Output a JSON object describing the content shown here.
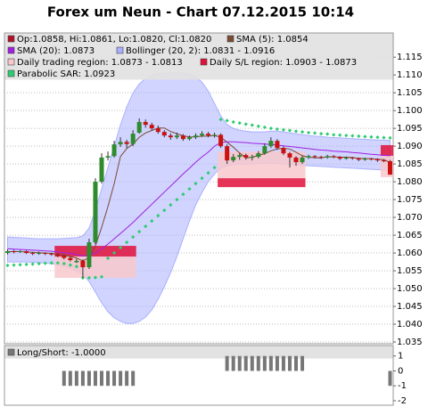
{
  "chart_data": [
    {
      "type": "candlestick",
      "title": "Forex um Neun - Chart 07.12.2015 10:14",
      "ohlc_name": "Op:1.0858, Hi:1.0861, Lo:1.0820, Cl:1.0820",
      "ohlc_color": "#b0102a",
      "up_color": "#2e8b2e",
      "down_color": "#cc1111",
      "ohlc": [
        [
          1.06,
          1.061,
          1.0596,
          1.0605
        ],
        [
          1.0605,
          1.0609,
          1.0599,
          1.0603
        ],
        [
          1.0603,
          1.0608,
          1.06,
          1.0605
        ],
        [
          1.0605,
          1.0607,
          1.0597,
          1.06
        ],
        [
          1.06,
          1.0603,
          1.0594,
          1.0598
        ],
        [
          1.0598,
          1.0604,
          1.0595,
          1.06
        ],
        [
          1.06,
          1.0602,
          1.0594,
          1.0598
        ],
        [
          1.0598,
          1.0601,
          1.0592,
          1.0596
        ],
        [
          1.0596,
          1.0599,
          1.0588,
          1.0592
        ],
        [
          1.0592,
          1.0595,
          1.0582,
          1.0586
        ],
        [
          1.0586,
          1.059,
          1.0576,
          1.058
        ],
        [
          1.0574,
          1.0584,
          1.0572,
          1.0578
        ],
        [
          1.0578,
          1.0582,
          1.053,
          1.056
        ],
        [
          1.056,
          1.064,
          1.0555,
          1.063
        ],
        [
          1.063,
          1.081,
          1.0625,
          1.08
        ],
        [
          1.08,
          1.088,
          1.0795,
          1.0868
        ],
        [
          1.0868,
          1.0885,
          1.086,
          1.0872
        ],
        [
          1.0872,
          1.0915,
          1.0868,
          1.0905
        ],
        [
          1.0905,
          1.0925,
          1.0898,
          1.0912
        ],
        [
          1.0912,
          1.0918,
          1.0895,
          1.0906
        ],
        [
          1.0906,
          1.0945,
          1.09,
          1.0935
        ],
        [
          1.0938,
          1.0978,
          1.0935,
          1.0968
        ],
        [
          1.0968,
          1.0975,
          1.0952,
          1.096
        ],
        [
          1.096,
          1.0966,
          1.0944,
          1.095
        ],
        [
          1.095,
          1.0958,
          1.0935,
          1.094
        ],
        [
          1.094,
          1.0945,
          1.0925,
          1.093
        ],
        [
          1.093,
          1.0936,
          1.0918,
          1.0925
        ],
        [
          1.0925,
          1.0938,
          1.092,
          1.093
        ],
        [
          1.093,
          1.0934,
          1.0915,
          1.092
        ],
        [
          1.092,
          1.093,
          1.0916,
          1.0925
        ],
        [
          1.0925,
          1.0936,
          1.092,
          1.093
        ],
        [
          1.093,
          1.0942,
          1.0926,
          1.0935
        ],
        [
          1.0935,
          1.094,
          1.0925,
          1.093
        ],
        [
          1.093,
          1.0938,
          1.0924,
          1.0932
        ],
        [
          1.0932,
          1.0936,
          1.0895,
          1.09
        ],
        [
          1.09,
          1.0905,
          1.085,
          1.086
        ],
        [
          1.086,
          1.0878,
          1.0855,
          1.087
        ],
        [
          1.087,
          1.088,
          1.0862,
          1.0875
        ],
        [
          1.0875,
          1.0879,
          1.0862,
          1.0868
        ],
        [
          1.0868,
          1.0876,
          1.086,
          1.087
        ],
        [
          1.087,
          1.0886,
          1.0866,
          1.088
        ],
        [
          1.088,
          1.0908,
          1.0876,
          1.09
        ],
        [
          1.09,
          1.0925,
          1.0895,
          1.0915
        ],
        [
          1.0915,
          1.092,
          1.089,
          1.0895
        ],
        [
          1.0895,
          1.09,
          1.0875,
          1.088
        ],
        [
          1.088,
          1.0884,
          1.084,
          1.0868
        ],
        [
          1.0868,
          1.0872,
          1.0845,
          1.0855
        ],
        [
          1.0855,
          1.0874,
          1.085,
          1.0868
        ],
        [
          1.0868,
          1.0876,
          1.0864,
          1.0872
        ],
        [
          1.0872,
          1.0875,
          1.0866,
          1.087
        ],
        [
          1.087,
          1.0873,
          1.0864,
          1.0868
        ],
        [
          1.0868,
          1.0876,
          1.0865,
          1.0872
        ],
        [
          1.0872,
          1.0875,
          1.0866,
          1.087
        ],
        [
          1.087,
          1.0872,
          1.0861,
          1.0865
        ],
        [
          1.0865,
          1.0871,
          1.0862,
          1.0868
        ],
        [
          1.0868,
          1.087,
          1.0862,
          1.0866
        ],
        [
          1.0866,
          1.0868,
          1.0858,
          1.0862
        ],
        [
          1.0862,
          1.0868,
          1.0859,
          1.0865
        ],
        [
          1.0865,
          1.0867,
          1.086,
          1.0864
        ],
        [
          1.0864,
          1.0866,
          1.0856,
          1.086
        ],
        [
          1.086,
          1.0863,
          1.0855,
          1.0858
        ],
        [
          1.0858,
          1.0861,
          1.082,
          1.082
        ]
      ],
      "series": [
        {
          "name": "SMA (5): 1.0854",
          "color": "#7a4a32",
          "style": "line",
          "values": [
            1.0604,
            1.0604,
            1.0604,
            1.0603,
            1.0602,
            1.0601,
            1.06,
            1.0599,
            1.0597,
            1.0594,
            1.059,
            1.0586,
            1.0578,
            1.0587,
            1.062,
            1.0672,
            1.073,
            1.0795,
            1.0871,
            1.0893,
            1.0906,
            1.0925,
            1.0937,
            1.0944,
            1.0951,
            1.0951,
            1.0941,
            1.0935,
            1.0929,
            1.0926,
            1.0926,
            1.0928,
            1.0928,
            1.093,
            1.0925,
            1.0911,
            1.0897,
            1.0881,
            1.0867,
            1.0869,
            1.0874,
            1.0879,
            1.0887,
            1.0892,
            1.0894,
            1.0892,
            1.0883,
            1.0873,
            1.0869,
            1.0867,
            1.0867,
            1.087,
            1.087,
            1.0869,
            1.0869,
            1.0868,
            1.0866,
            1.0865,
            1.0865,
            1.0863,
            1.0862,
            1.0854
          ]
        },
        {
          "name": "SMA (20): 1.0873",
          "color": "#a020e0",
          "style": "line",
          "values": [
            1.0612,
            1.0611,
            1.061,
            1.0609,
            1.0608,
            1.0607,
            1.0606,
            1.0605,
            1.0603,
            1.0601,
            1.0599,
            1.0596,
            1.0592,
            1.0592,
            1.06,
            1.0612,
            1.0625,
            1.064,
            1.0655,
            1.067,
            1.0686,
            1.0703,
            1.072,
            1.0737,
            1.0754,
            1.0771,
            1.0788,
            1.0805,
            1.0822,
            1.0838,
            1.0855,
            1.087,
            1.0883,
            1.09,
            1.091,
            1.0912,
            1.0912,
            1.0911,
            1.091,
            1.0908,
            1.0907,
            1.0906,
            1.0905,
            1.0903,
            1.0901,
            1.0899,
            1.0897,
            1.0895,
            1.0893,
            1.0891,
            1.0889,
            1.0888,
            1.0886,
            1.0885,
            1.0884,
            1.0882,
            1.0881,
            1.0879,
            1.0877,
            1.0876,
            1.0874,
            1.0873
          ]
        },
        {
          "name": "Parabolic SAR: 1.0923",
          "color": "#2ecc71",
          "style": "dots",
          "values": [
            1.0565,
            1.0566,
            1.0567,
            1.0568,
            1.0569,
            1.057,
            1.0571,
            1.0572,
            1.0572,
            1.057,
            1.0566,
            1.0562,
            1.053,
            1.053,
            1.0531,
            1.0533,
            1.0585,
            1.06,
            1.0615,
            1.063,
            1.0645,
            1.066,
            1.0675,
            1.069,
            1.0705,
            1.072,
            1.0735,
            1.075,
            1.0765,
            1.078,
            1.0795,
            1.081,
            1.0825,
            1.084,
            1.0975,
            1.0972,
            1.0968,
            1.0965,
            1.0962,
            1.0959,
            1.0956,
            1.0953,
            1.095,
            1.0948,
            1.0946,
            1.0944,
            1.0942,
            1.094,
            1.0938,
            1.0937,
            1.0935,
            1.0934,
            1.0932,
            1.0931,
            1.093,
            1.0929,
            1.0928,
            1.0927,
            1.0926,
            1.0925,
            1.0924,
            1.0923
          ]
        }
      ],
      "band": {
        "name": "Bollinger (20, 2): 1.0831 - 1.0916",
        "color": "#aab0ff",
        "upper": [
          1.0645,
          1.0644,
          1.0643,
          1.0642,
          1.0641,
          1.064,
          1.064,
          1.064,
          1.064,
          1.0641,
          1.0642,
          1.0643,
          1.0648,
          1.067,
          1.072,
          1.078,
          1.084,
          1.09,
          1.096,
          1.101,
          1.105,
          1.1075,
          1.109,
          1.1098,
          1.1103,
          1.1105,
          1.1105,
          1.1106,
          1.1106,
          1.1103,
          1.1095,
          1.108,
          1.1055,
          1.102,
          1.0985,
          1.096,
          1.095,
          1.0945,
          1.0942,
          1.094,
          1.094,
          1.094,
          1.0942,
          1.0942,
          1.094,
          1.0937,
          1.0935,
          1.0932,
          1.093,
          1.0928,
          1.0927,
          1.0925,
          1.0924,
          1.0923,
          1.0922,
          1.0921,
          1.092,
          1.0919,
          1.0918,
          1.0917,
          1.0917,
          1.0916
        ],
        "lower": [
          1.0575,
          1.0575,
          1.0575,
          1.0575,
          1.0574,
          1.0573,
          1.0572,
          1.057,
          1.0567,
          1.0563,
          1.0557,
          1.055,
          1.054,
          1.052,
          1.049,
          1.046,
          1.0435,
          1.0418,
          1.0408,
          1.0402,
          1.0402,
          1.0408,
          1.042,
          1.044,
          1.047,
          1.0505,
          1.0545,
          1.059,
          1.064,
          1.069,
          1.0735,
          1.077,
          1.08,
          1.0822,
          1.0838,
          1.0845,
          1.0848,
          1.085,
          1.085,
          1.085,
          1.0851,
          1.0852,
          1.0852,
          1.0851,
          1.085,
          1.0849,
          1.0848,
          1.0846,
          1.0845,
          1.0844,
          1.0843,
          1.0842,
          1.0841,
          1.084,
          1.0839,
          1.0838,
          1.0837,
          1.0836,
          1.0835,
          1.0834,
          1.0833,
          1.0831
        ]
      },
      "regions": [
        {
          "name": "Daily trading region: 1.0873 - 1.0813",
          "color": "#f8c8cc",
          "items": [
            {
              "from": 8,
              "to": 20,
              "low": 1.053,
              "high": 1.059
            },
            {
              "from": 34,
              "to": 47,
              "low": 1.081,
              "high": 1.0885
            },
            {
              "from": 60,
              "to": 61,
              "low": 1.0813,
              "high": 1.0873
            }
          ]
        },
        {
          "name": "Daily S/L region: 1.0903 - 1.0873",
          "color": "#e0103a",
          "items": [
            {
              "from": 8,
              "to": 20,
              "low": 1.059,
              "high": 1.062
            },
            {
              "from": 34,
              "to": 47,
              "low": 1.0785,
              "high": 1.081
            },
            {
              "from": 60,
              "to": 61,
              "low": 1.0873,
              "high": 1.0903
            }
          ]
        }
      ],
      "ylim": [
        1.0345,
        1.1218
      ],
      "yticks": [
        1.035,
        {
          "value": 1.04,
          "label": "1.040"
        },
        1.045,
        {
          "value": 1.05,
          "label": "1.050"
        },
        1.055,
        {
          "value": 1.06,
          "label": "1.060"
        },
        1.065,
        {
          "value": 1.07,
          "label": "1.070"
        },
        1.075,
        {
          "value": 1.08,
          "label": "1.080"
        },
        1.085,
        {
          "value": 1.09,
          "label": "1.090"
        },
        1.095,
        {
          "value": 1.1,
          "label": "1.100"
        },
        1.105,
        {
          "value": 1.11,
          "label": "1.110"
        },
        1.115
      ],
      "grid": true
    },
    {
      "type": "bar",
      "series": [
        {
          "name": "Long/Short: -1.0000",
          "color": "#777777",
          "values": [
            0,
            0,
            0,
            0,
            0,
            0,
            0,
            0,
            0,
            -1,
            -1,
            -1,
            -1,
            -1,
            -1,
            -1,
            -1,
            -1,
            -1,
            -1,
            -1,
            0,
            0,
            0,
            0,
            0,
            0,
            0,
            0,
            0,
            0,
            0,
            0,
            0,
            0,
            1,
            1,
            1,
            1,
            1,
            1,
            1,
            1,
            1,
            1,
            1,
            1,
            1,
            0,
            0,
            0,
            0,
            0,
            0,
            0,
            0,
            0,
            0,
            0,
            0,
            0,
            -1
          ]
        }
      ],
      "ylim": [
        -2.3,
        1.7
      ],
      "yticks": [
        1,
        0,
        -1,
        -2
      ]
    }
  ]
}
